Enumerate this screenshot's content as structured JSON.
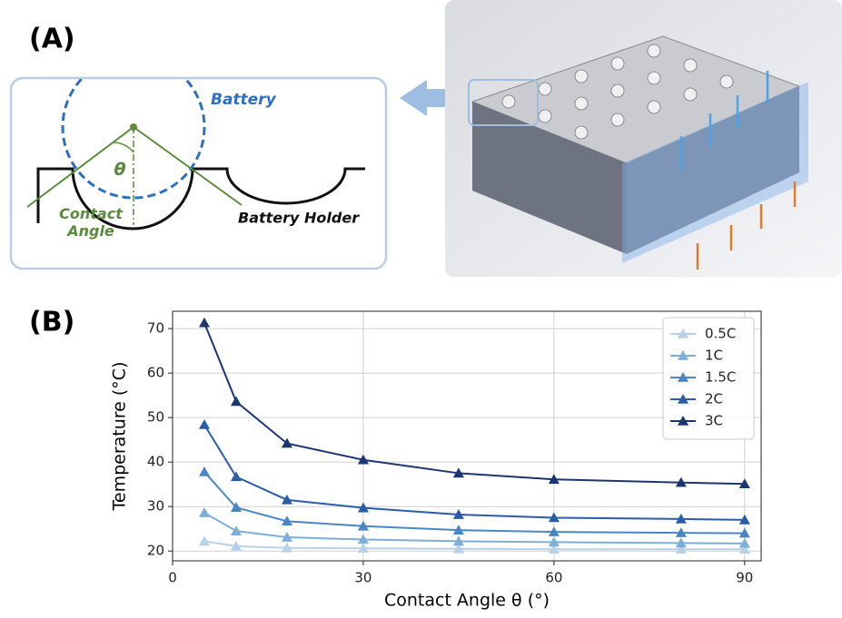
{
  "panels": {
    "a": "(A)",
    "b": "(B)"
  },
  "diagram": {
    "battery": "Battery",
    "angle_symbol": "θ",
    "contact_angle": "Contact\nAngle",
    "holder": "Battery Holder"
  },
  "chart_data": {
    "type": "line",
    "x_label": "Contact Angle θ (°)",
    "y_label": "Temperature (°C)",
    "x": [
      5,
      10,
      18,
      30,
      45,
      60,
      80,
      90
    ],
    "series": [
      {
        "name": "0.5C",
        "color": "#b7d1e8",
        "values": [
          22.2,
          21.1,
          20.7,
          20.6,
          20.5,
          20.4,
          20.4,
          20.4
        ]
      },
      {
        "name": "1C",
        "color": "#7eaed6",
        "values": [
          28.6,
          24.5,
          23.1,
          22.6,
          22.2,
          22.0,
          21.8,
          21.7
        ]
      },
      {
        "name": "1.5C",
        "color": "#4a86c4",
        "values": [
          37.8,
          29.8,
          26.7,
          25.6,
          24.7,
          24.3,
          24.1,
          24.0
        ]
      },
      {
        "name": "2C",
        "color": "#2a5ca8",
        "values": [
          48.4,
          36.7,
          31.5,
          29.7,
          28.2,
          27.5,
          27.2,
          27.0
        ]
      },
      {
        "name": "3C",
        "color": "#1a3570",
        "values": [
          71.3,
          53.6,
          44.2,
          40.5,
          37.5,
          36.1,
          35.4,
          35.1
        ]
      }
    ],
    "xlim": [
      0,
      92.6
    ],
    "ylim": [
      17.8,
      73.9
    ],
    "xticks": [
      0,
      30,
      60,
      90
    ],
    "yticks": [
      20,
      30,
      40,
      50,
      60,
      70
    ],
    "grid": true,
    "legend": "upper right",
    "marker": "triangle"
  }
}
